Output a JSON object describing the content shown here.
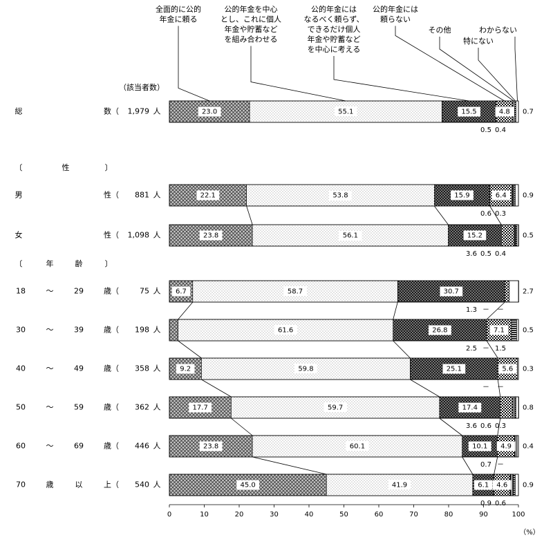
{
  "chart_data": {
    "type": "bar",
    "orientation": "horizontal",
    "stacked": true,
    "legend_position": "top",
    "legend_entries": [
      "全面的に公的\n年金に頼る",
      "公的年金を中心\nとし、これに個人\n年金や貯蓄など\nを組み合わせる",
      "公的年金には\nなるべく頼らず、\nできるだけ個人\n年金や貯蓄など\nを中心に考える",
      "公的年金には\n頼らない",
      "その他",
      "特にない",
      "わからない"
    ],
    "count_header": "（該当者数）",
    "unit": "（%）",
    "x_ticks": [
      "0",
      "10",
      "20",
      "30",
      "40",
      "50",
      "60",
      "70",
      "80",
      "90",
      "100"
    ],
    "xlim": [
      0,
      100
    ],
    "sections": [
      {
        "label_parts": [
          "〔",
          "性",
          "〕"
        ]
      },
      {
        "label_parts": [
          "〔",
          "年",
          "齢",
          "〕"
        ]
      }
    ],
    "rows": [
      {
        "label_parts": [
          "総",
          "数（"
        ],
        "count": "1,979",
        "count_unit": "人",
        "values": [
          23.0,
          55.1,
          15.5,
          4.8,
          0.5,
          0.4,
          0.7
        ],
        "labels": [
          "23.0",
          "55.1",
          "15.5",
          "4.8",
          "0.5",
          "0.4",
          "0.7"
        ]
      },
      {
        "label_parts": [
          "男",
          "性（"
        ],
        "count": "881",
        "count_unit": "人",
        "values": [
          22.1,
          53.8,
          15.9,
          6.4,
          0.6,
          0.3,
          0.9
        ],
        "labels": [
          "22.1",
          "53.8",
          "15.9",
          "6.4",
          "0.6",
          "0.3",
          "0.9"
        ]
      },
      {
        "label_parts": [
          "女",
          "性（"
        ],
        "count": "1,098",
        "count_unit": "人",
        "values": [
          23.8,
          56.1,
          15.2,
          3.6,
          0.5,
          0.4,
          0.5
        ],
        "labels": [
          "23.8",
          "56.1",
          "15.2",
          "3.6",
          "0.5",
          "0.4",
          "0.5"
        ]
      },
      {
        "label_parts": [
          "18",
          "～",
          "29",
          "歳（"
        ],
        "count": "75",
        "count_unit": "人",
        "values": [
          6.7,
          58.7,
          30.7,
          1.3,
          0,
          0,
          2.7
        ],
        "labels": [
          "6.7",
          "58.7",
          "30.7",
          "1.3",
          "－",
          "－",
          "2.7"
        ]
      },
      {
        "label_parts": [
          "30",
          "～",
          "39",
          "歳（"
        ],
        "count": "198",
        "count_unit": "人",
        "values": [
          2.5,
          61.6,
          26.8,
          7.1,
          0,
          1.5,
          0.5
        ],
        "labels": [
          "2.5",
          "61.6",
          "26.8",
          "7.1",
          "－",
          "1.5",
          "0.5"
        ]
      },
      {
        "label_parts": [
          "40",
          "～",
          "49",
          "歳（"
        ],
        "count": "358",
        "count_unit": "人",
        "values": [
          9.2,
          59.8,
          25.1,
          5.6,
          0,
          0,
          0.3
        ],
        "labels": [
          "9.2",
          "59.8",
          "25.1",
          "5.6",
          "－",
          "－",
          "0.3"
        ]
      },
      {
        "label_parts": [
          "50",
          "～",
          "59",
          "歳（"
        ],
        "count": "362",
        "count_unit": "人",
        "values": [
          17.7,
          59.7,
          17.4,
          3.6,
          0.6,
          0.3,
          0.8
        ],
        "labels": [
          "17.7",
          "59.7",
          "17.4",
          "3.6",
          "0.6",
          "0.3",
          "0.8"
        ]
      },
      {
        "label_parts": [
          "60",
          "～",
          "69",
          "歳（"
        ],
        "count": "446",
        "count_unit": "人",
        "values": [
          23.8,
          60.1,
          10.1,
          4.9,
          0.7,
          0,
          0.4
        ],
        "labels": [
          "23.8",
          "60.1",
          "10.1",
          "4.9",
          "0.7",
          "－",
          "0.4"
        ]
      },
      {
        "label_parts": [
          "70",
          "歳",
          "以",
          "上（"
        ],
        "count": "540",
        "count_unit": "人",
        "values": [
          45.0,
          41.9,
          6.1,
          4.6,
          0.9,
          0.6,
          0.9
        ],
        "labels": [
          "45.0",
          "41.9",
          "6.1",
          "4.6",
          "0.9",
          "0.6",
          "0.9"
        ]
      }
    ]
  }
}
